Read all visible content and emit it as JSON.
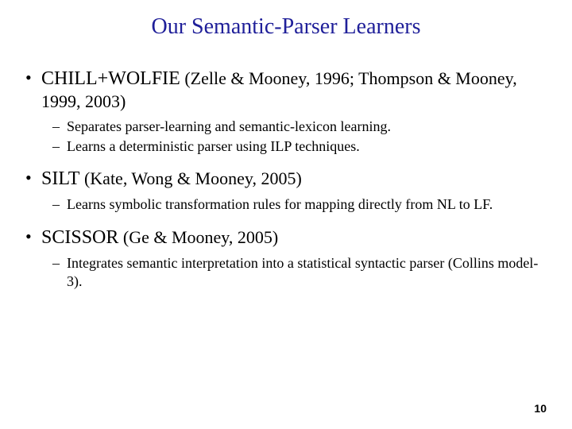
{
  "title": "Our Semantic-Parser Learners",
  "bullets": [
    {
      "name": "CHILL+WOLFIE",
      "citation": " (Zelle & Mooney, 1996; Thompson & Mooney, 1999, 2003)",
      "subs": [
        "Separates parser-learning and semantic-lexicon learning.",
        "Learns a deterministic parser using ILP techniques."
      ]
    },
    {
      "name": "SILT",
      "citation": " (Kate, Wong & Mooney, 2005)",
      "subs": [
        "Learns symbolic transformation rules for mapping directly from NL to LF."
      ]
    },
    {
      "name": "SCISSOR",
      "citation": " (Ge & Mooney, 2005)",
      "subs": [
        "Integrates semantic interpretation into a statistical syntactic parser (Collins model-3)."
      ]
    }
  ],
  "page_number": "10",
  "colors": {
    "title_color": "#1f1f99",
    "text_color": "#000000",
    "background": "#ffffff"
  }
}
